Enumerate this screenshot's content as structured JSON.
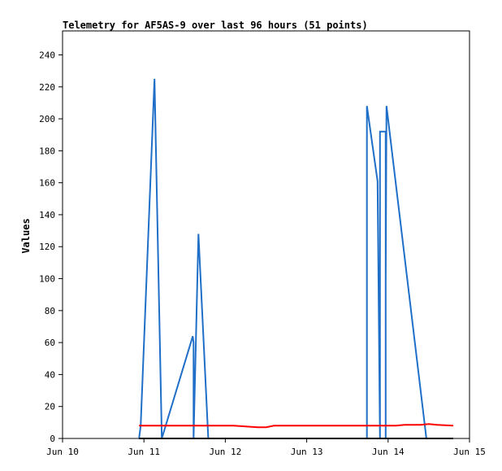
{
  "chart_data": {
    "type": "line",
    "title": "Telemetry for AF5AS-9 over last 96 hours (51 points)",
    "xlabel": "",
    "ylabel": "Values",
    "xlim": [
      10,
      15
    ],
    "ylim": [
      0,
      255
    ],
    "grid": false,
    "x_ticks": [
      10,
      11,
      12,
      13,
      14,
      15
    ],
    "x_tick_labels": [
      "Jun 10",
      "Jun 11",
      "Jun 12",
      "Jun 13",
      "Jun 14",
      "Jun 15"
    ],
    "y_ticks": [
      0,
      20,
      40,
      60,
      80,
      100,
      120,
      140,
      160,
      180,
      200,
      220,
      240
    ],
    "y_tick_labels": [
      "0",
      "20",
      "40",
      "60",
      "80",
      "100",
      "120",
      "140",
      "160",
      "180",
      "200",
      "220",
      "240"
    ],
    "series": [
      {
        "color": "#1f6fc8",
        "x": [
          10.94,
          10.96,
          11.13,
          11.22,
          11.6,
          11.61,
          11.61,
          11.67,
          11.79,
          11.8,
          13.74,
          13.74,
          13.87,
          13.9,
          13.9,
          13.97,
          13.97,
          13.97,
          13.98,
          14.47
        ],
        "y": [
          0,
          8,
          225,
          0,
          64,
          60,
          0,
          128,
          0,
          0,
          0,
          208,
          161,
          0,
          192,
          192,
          0,
          97,
          208,
          0
        ]
      },
      {
        "color": "#ff0000",
        "x": [
          10.94,
          11.2,
          11.6,
          11.8,
          12.1,
          12.4,
          12.5,
          12.6,
          13.0,
          13.5,
          13.9,
          14.1,
          14.2,
          14.4,
          14.5,
          14.6,
          14.8
        ],
        "y": [
          8,
          8,
          8,
          8,
          8,
          7,
          7,
          8,
          8,
          8,
          8,
          8,
          8.5,
          8.5,
          9,
          8.5,
          8
        ]
      },
      {
        "color": "#000000",
        "x": [
          10.94,
          14.8
        ],
        "y": [
          0,
          0
        ]
      }
    ]
  }
}
